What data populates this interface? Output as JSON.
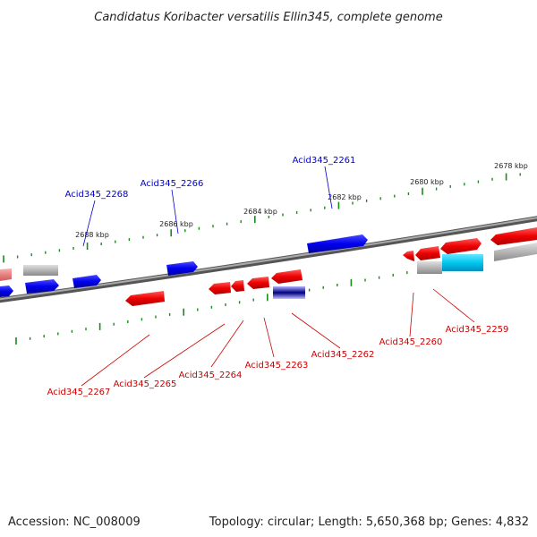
{
  "title": "Candidatus Koribacter versatilis Ellin345, complete genome",
  "footer": {
    "accession": "Accession: NC_008009",
    "summary": "Topology: circular; Length: 5,650,368 bp; Genes: 4,832"
  },
  "colors": {
    "forward_gene": "#0000ee",
    "reverse_gene": "#ee0000",
    "pseudo_gene": "#b0b0b0",
    "highlight_gene": "#00c8ee",
    "forward_label": "#0000cc",
    "reverse_label": "#cc0000",
    "backbone": "#777777",
    "tick": "#1a8a1a"
  },
  "scale_labels": [
    "2678 kbp",
    "2680 kbp",
    "2682 kbp",
    "2684 kbp",
    "2686 kbp",
    "2688 kbp"
  ],
  "forward_labels": [
    "Acid345_2261",
    "Acid345_2266",
    "Acid345_2268"
  ],
  "reverse_labels": [
    "Acid345_2259",
    "Acid345_2260",
    "Acid345_2262",
    "Acid345_2263",
    "Acid345_2264",
    "Acid345_2265",
    "Acid345_2267"
  ]
}
